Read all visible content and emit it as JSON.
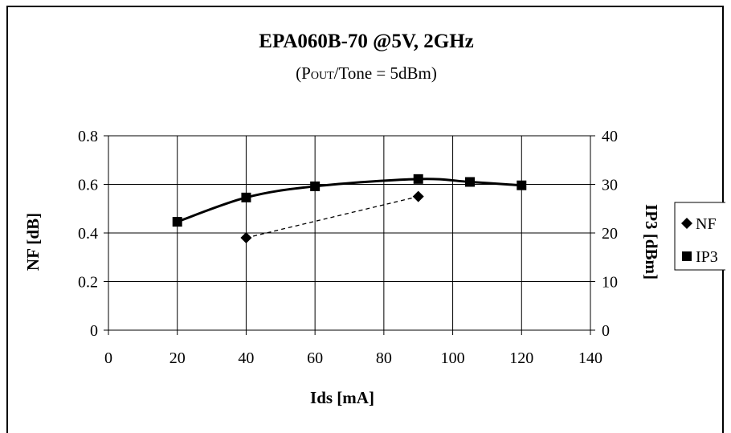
{
  "chart_data": {
    "type": "line",
    "title": "EPA060B-70 @5V, 2GHz",
    "subtitle": {
      "prefix": "(P",
      "sub": "OUT",
      "suffix": "/Tone = 5dBm)"
    },
    "xlabel": "Ids [mA]",
    "ylabel_left": "NF [dB]",
    "ylabel_right": "IP3 [dBm]",
    "xlim": [
      0,
      140
    ],
    "xticks": [
      "0",
      "20",
      "40",
      "60",
      "80",
      "100",
      "120",
      "140"
    ],
    "ylim_left": [
      0,
      0.8
    ],
    "yticks_left": [
      "0",
      "0.2",
      "0.4",
      "0.6",
      "0.8"
    ],
    "ylim_right": [
      0,
      40
    ],
    "yticks_right": [
      "0",
      "10",
      "20",
      "30",
      "40"
    ],
    "grid": true,
    "legend_position": "right",
    "series": [
      {
        "name": "NF",
        "axis": "left",
        "marker": "diamond",
        "line": "dashed",
        "x": [
          40,
          90
        ],
        "y": [
          0.38,
          0.55
        ]
      },
      {
        "name": "IP3",
        "axis": "right",
        "marker": "square",
        "line": "solid",
        "x": [
          20,
          40,
          60,
          90,
          105,
          120
        ],
        "y": [
          22.3,
          27.3,
          29.6,
          31.1,
          30.5,
          29.8
        ]
      }
    ]
  }
}
